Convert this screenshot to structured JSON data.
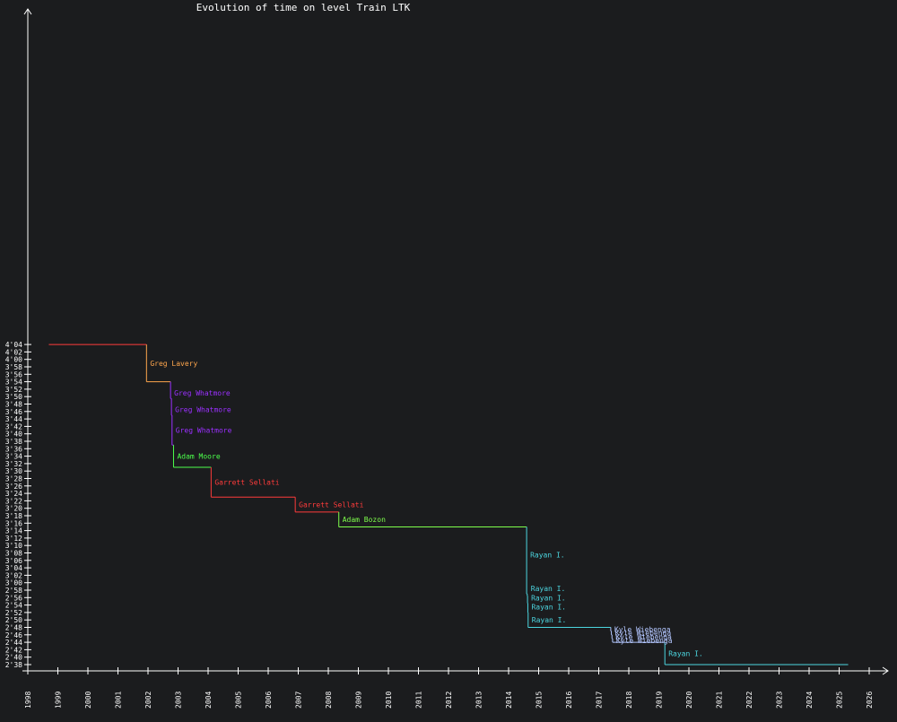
{
  "chart_data": {
    "type": "line",
    "title": "Evolution of time on level Train LTK",
    "xlabel": "",
    "ylabel": "",
    "x_ticks": [
      "1998",
      "1999",
      "2000",
      "2001",
      "2002",
      "2003",
      "2004",
      "2005",
      "2006",
      "2007",
      "2008",
      "2009",
      "2010",
      "2011",
      "2012",
      "2013",
      "2014",
      "2015",
      "2016",
      "2017",
      "2018",
      "2019",
      "2020",
      "2021",
      "2022",
      "2023",
      "2024",
      "2025",
      "2026"
    ],
    "y_ticks": [
      "2'38",
      "2'40",
      "2'42",
      "2'44",
      "2'46",
      "2'48",
      "2'50",
      "2'52",
      "2'54",
      "2'56",
      "2'58",
      "3'00",
      "3'02",
      "3'04",
      "3'06",
      "3'08",
      "3'10",
      "3'12",
      "3'14",
      "3'16",
      "3'18",
      "3'20",
      "3'22",
      "3'24",
      "3'26",
      "3'28",
      "3'30",
      "3'32",
      "3'34",
      "3'36",
      "3'38",
      "3'40",
      "3'42",
      "3'44",
      "3'46",
      "3'48",
      "3'50",
      "3'52",
      "3'54",
      "3'56",
      "3'58",
      "4'00",
      "4'02",
      "4'04"
    ],
    "xlim": [
      1998,
      2026
    ],
    "ylim_seconds": [
      158,
      244
    ],
    "grid": false,
    "colors": {
      "background": "#1b1c1e",
      "axis": "#ffffff",
      "title": "#ffffff"
    },
    "start": {
      "x": 1998.7,
      "y": 244,
      "color": "#ff3b3b"
    },
    "records": [
      {
        "holder": "Greg Lavery",
        "x": 2001.95,
        "y": 234,
        "color": "#ffa64d",
        "label_y": 239
      },
      {
        "holder": "Greg Whatmore",
        "x": 2002.75,
        "y": 229.5,
        "color": "#9b30ff",
        "label_y": 231
      },
      {
        "holder": "Greg Whatmore",
        "x": 2002.78,
        "y": 225,
        "color": "#9b30ff",
        "label_y": 226.5
      },
      {
        "holder": "Greg Whatmore",
        "x": 2002.8,
        "y": 217,
        "color": "#9b30ff",
        "label_y": 221
      },
      {
        "holder": "Adam Moore",
        "x": 2002.85,
        "y": 211,
        "color": "#4cff4c",
        "label_y": 214
      },
      {
        "holder": "Garrett Sellati",
        "x": 2004.1,
        "y": 203,
        "color": "#ff3b3b",
        "label_y": 207
      },
      {
        "holder": "Garrett Sellati",
        "x": 2006.9,
        "y": 199,
        "color": "#ff3b3b",
        "label_y": 201
      },
      {
        "holder": "Adam Bozon",
        "x": 2008.35,
        "y": 195,
        "color": "#7fff4c",
        "label_y": 197
      },
      {
        "holder": "Rayan I.",
        "x": 2014.6,
        "y": 177,
        "color": "#4cd6e0",
        "label_y": 187.5
      },
      {
        "holder": "Rayan I.",
        "x": 2014.62,
        "y": 176.5,
        "color": "#4cd6e0",
        "label_y": 178.5
      },
      {
        "holder": "Rayan I.",
        "x": 2014.63,
        "y": 174.5,
        "color": "#4cd6e0",
        "label_y": 176
      },
      {
        "holder": "Rayan I.",
        "x": 2014.64,
        "y": 172,
        "color": "#4cd6e0",
        "label_y": 173.5
      },
      {
        "holder": "Rayan I.",
        "x": 2014.65,
        "y": 168,
        "color": "#4cd6e0",
        "label_y": 170
      },
      {
        "holder": "Kyle Wiebenga",
        "x": 2017.4,
        "y": 167,
        "color": "#b3c6ff",
        "label_y": 167.5
      },
      {
        "holder": "Kyle Wiebenga",
        "x": 2017.42,
        "y": 166,
        "color": "#b3c6ff",
        "label_y": 166.5
      },
      {
        "holder": "Kyle Wiebenga",
        "x": 2017.44,
        "y": 165,
        "color": "#b3c6ff",
        "label_y": 165.5
      },
      {
        "holder": "Kyle Wiebenga",
        "x": 2017.46,
        "y": 164,
        "color": "#b3c6ff",
        "label_y": 164.5
      },
      {
        "holder": "Rayan I.",
        "x": 2019.2,
        "y": 158,
        "color": "#4cd6e0",
        "label_y": 161
      }
    ],
    "end_x": 2025.3
  }
}
